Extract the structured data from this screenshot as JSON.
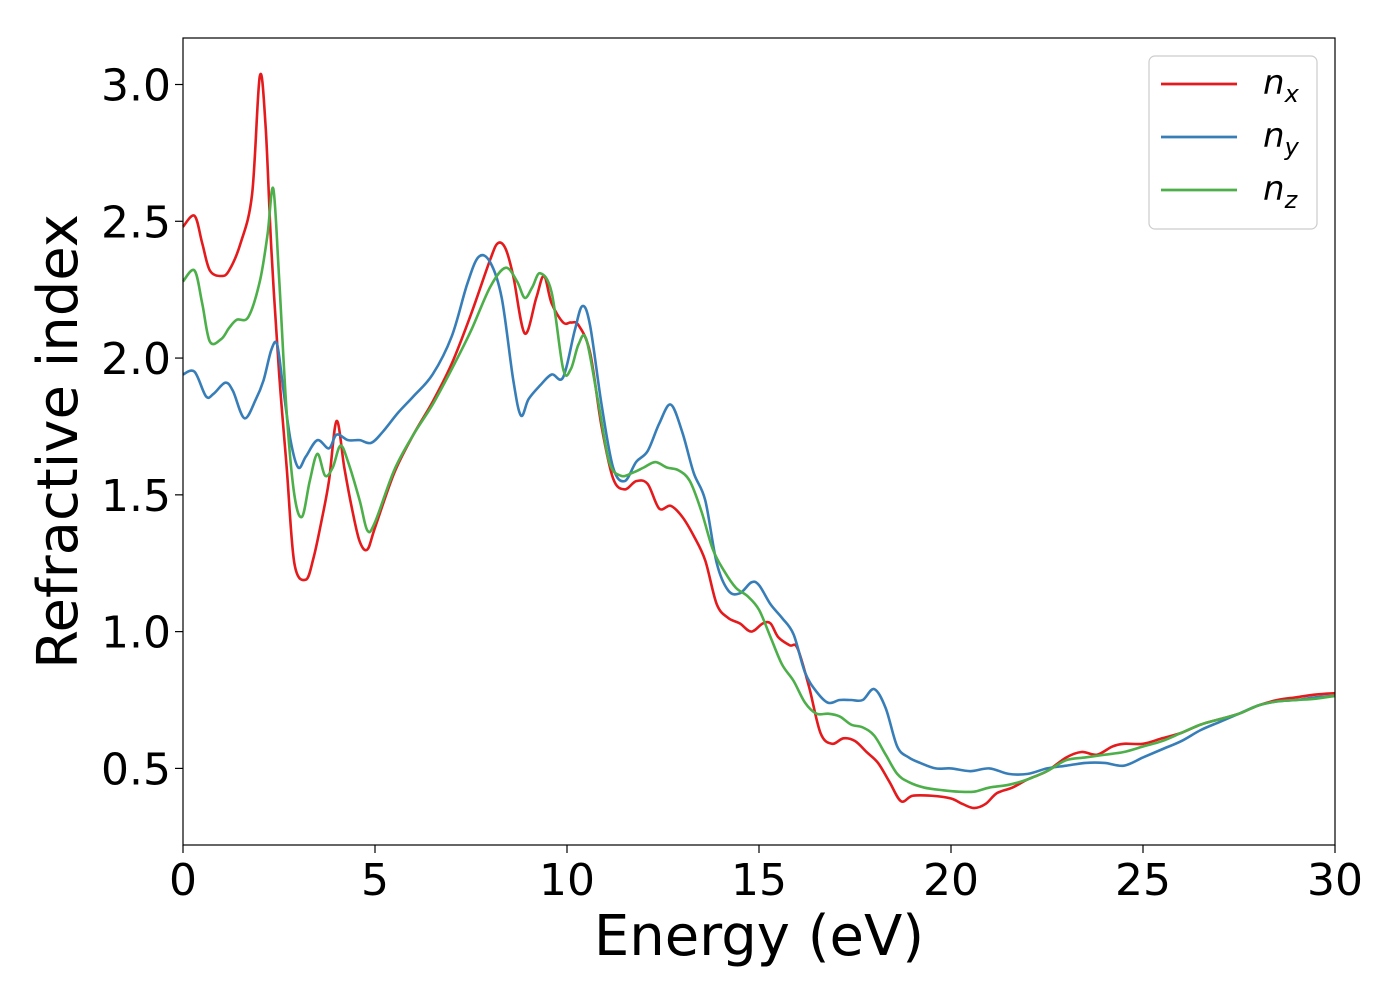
{
  "chart_data": {
    "type": "line",
    "title": "",
    "xlabel": "Energy (eV)",
    "ylabel": "Refractive index",
    "xlim": [
      0,
      30
    ],
    "ylim": [
      0.22,
      3.17
    ],
    "xticks": [
      0,
      5,
      10,
      15,
      20,
      25,
      30
    ],
    "yticks": [
      0.5,
      1.0,
      1.5,
      2.0,
      2.5,
      3.0
    ],
    "xtick_labels": [
      "0",
      "5",
      "10",
      "15",
      "20",
      "25",
      "30"
    ],
    "ytick_labels": [
      "0.5",
      "1.0",
      "1.5",
      "2.0",
      "2.5",
      "3.0"
    ],
    "grid": false,
    "legend_position": "top-right",
    "series": [
      {
        "name": "n_x",
        "legend_base": "n",
        "legend_sub": "x",
        "color": "#e41a1c",
        "points": [
          [
            0,
            2.48
          ],
          [
            0.3,
            2.52
          ],
          [
            0.5,
            2.42
          ],
          [
            0.7,
            2.32
          ],
          [
            1.0,
            2.3
          ],
          [
            1.2,
            2.32
          ],
          [
            1.5,
            2.42
          ],
          [
            1.8,
            2.6
          ],
          [
            2.0,
            3.03
          ],
          [
            2.15,
            2.85
          ],
          [
            2.3,
            2.4
          ],
          [
            2.5,
            1.95
          ],
          [
            2.7,
            1.6
          ],
          [
            2.9,
            1.25
          ],
          [
            3.2,
            1.19
          ],
          [
            3.4,
            1.27
          ],
          [
            3.6,
            1.4
          ],
          [
            3.8,
            1.55
          ],
          [
            4.0,
            1.77
          ],
          [
            4.2,
            1.6
          ],
          [
            4.4,
            1.45
          ],
          [
            4.6,
            1.33
          ],
          [
            4.8,
            1.3
          ],
          [
            5.0,
            1.38
          ],
          [
            5.5,
            1.58
          ],
          [
            6,
            1.72
          ],
          [
            6.5,
            1.84
          ],
          [
            7,
            1.98
          ],
          [
            7.5,
            2.16
          ],
          [
            8,
            2.36
          ],
          [
            8.2,
            2.42
          ],
          [
            8.4,
            2.4
          ],
          [
            8.6,
            2.3
          ],
          [
            8.9,
            2.09
          ],
          [
            9.2,
            2.22
          ],
          [
            9.4,
            2.3
          ],
          [
            9.6,
            2.2
          ],
          [
            9.9,
            2.13
          ],
          [
            10.1,
            2.13
          ],
          [
            10.3,
            2.12
          ],
          [
            10.6,
            2.02
          ],
          [
            10.9,
            1.75
          ],
          [
            11.2,
            1.56
          ],
          [
            11.5,
            1.52
          ],
          [
            11.8,
            1.55
          ],
          [
            12.1,
            1.54
          ],
          [
            12.4,
            1.45
          ],
          [
            12.7,
            1.46
          ],
          [
            13.0,
            1.42
          ],
          [
            13.3,
            1.35
          ],
          [
            13.6,
            1.26
          ],
          [
            13.9,
            1.1
          ],
          [
            14.2,
            1.05
          ],
          [
            14.5,
            1.03
          ],
          [
            14.8,
            1.0
          ],
          [
            15.1,
            1.03
          ],
          [
            15.3,
            1.03
          ],
          [
            15.5,
            0.98
          ],
          [
            15.8,
            0.95
          ],
          [
            16.0,
            0.94
          ],
          [
            16.3,
            0.8
          ],
          [
            16.6,
            0.63
          ],
          [
            16.9,
            0.59
          ],
          [
            17.2,
            0.61
          ],
          [
            17.5,
            0.6
          ],
          [
            17.8,
            0.56
          ],
          [
            18.1,
            0.52
          ],
          [
            18.4,
            0.45
          ],
          [
            18.7,
            0.38
          ],
          [
            19.0,
            0.4
          ],
          [
            19.5,
            0.4
          ],
          [
            20.0,
            0.39
          ],
          [
            20.3,
            0.37
          ],
          [
            20.6,
            0.355
          ],
          [
            20.9,
            0.37
          ],
          [
            21.2,
            0.41
          ],
          [
            21.6,
            0.43
          ],
          [
            22.0,
            0.46
          ],
          [
            22.5,
            0.49
          ],
          [
            23,
            0.54
          ],
          [
            23.4,
            0.56
          ],
          [
            23.8,
            0.55
          ],
          [
            24.2,
            0.58
          ],
          [
            24.5,
            0.59
          ],
          [
            25,
            0.59
          ],
          [
            25.5,
            0.61
          ],
          [
            26,
            0.63
          ],
          [
            26.5,
            0.66
          ],
          [
            27,
            0.68
          ],
          [
            27.5,
            0.7
          ],
          [
            28,
            0.73
          ],
          [
            28.5,
            0.75
          ],
          [
            29,
            0.76
          ],
          [
            29.5,
            0.77
          ],
          [
            30,
            0.775
          ]
        ]
      },
      {
        "name": "n_y",
        "legend_base": "n",
        "legend_sub": "y",
        "color": "#377eb8",
        "points": [
          [
            0,
            1.94
          ],
          [
            0.3,
            1.95
          ],
          [
            0.6,
            1.86
          ],
          [
            0.8,
            1.87
          ],
          [
            1.1,
            1.91
          ],
          [
            1.3,
            1.88
          ],
          [
            1.6,
            1.78
          ],
          [
            1.9,
            1.85
          ],
          [
            2.1,
            1.92
          ],
          [
            2.3,
            2.03
          ],
          [
            2.45,
            2.05
          ],
          [
            2.6,
            1.9
          ],
          [
            2.8,
            1.7
          ],
          [
            3.0,
            1.6
          ],
          [
            3.2,
            1.64
          ],
          [
            3.5,
            1.7
          ],
          [
            3.8,
            1.67
          ],
          [
            4.0,
            1.72
          ],
          [
            4.3,
            1.7
          ],
          [
            4.6,
            1.7
          ],
          [
            4.9,
            1.69
          ],
          [
            5.2,
            1.73
          ],
          [
            5.6,
            1.8
          ],
          [
            6,
            1.86
          ],
          [
            6.5,
            1.94
          ],
          [
            7,
            2.08
          ],
          [
            7.4,
            2.27
          ],
          [
            7.7,
            2.37
          ],
          [
            8.0,
            2.35
          ],
          [
            8.3,
            2.22
          ],
          [
            8.6,
            1.92
          ],
          [
            8.8,
            1.79
          ],
          [
            9.0,
            1.85
          ],
          [
            9.3,
            1.9
          ],
          [
            9.6,
            1.94
          ],
          [
            9.9,
            1.93
          ],
          [
            10.2,
            2.1
          ],
          [
            10.4,
            2.19
          ],
          [
            10.6,
            2.12
          ],
          [
            10.9,
            1.83
          ],
          [
            11.2,
            1.6
          ],
          [
            11.5,
            1.55
          ],
          [
            11.8,
            1.62
          ],
          [
            12.1,
            1.66
          ],
          [
            12.4,
            1.76
          ],
          [
            12.7,
            1.83
          ],
          [
            13.0,
            1.73
          ],
          [
            13.3,
            1.58
          ],
          [
            13.6,
            1.48
          ],
          [
            13.9,
            1.25
          ],
          [
            14.2,
            1.15
          ],
          [
            14.5,
            1.14
          ],
          [
            14.8,
            1.18
          ],
          [
            15.0,
            1.17
          ],
          [
            15.3,
            1.1
          ],
          [
            15.6,
            1.05
          ],
          [
            15.9,
            0.99
          ],
          [
            16.2,
            0.85
          ],
          [
            16.5,
            0.78
          ],
          [
            16.8,
            0.74
          ],
          [
            17.1,
            0.75
          ],
          [
            17.4,
            0.75
          ],
          [
            17.7,
            0.75
          ],
          [
            18.0,
            0.79
          ],
          [
            18.3,
            0.72
          ],
          [
            18.6,
            0.58
          ],
          [
            18.9,
            0.54
          ],
          [
            19.2,
            0.52
          ],
          [
            19.6,
            0.5
          ],
          [
            20.0,
            0.5
          ],
          [
            20.5,
            0.49
          ],
          [
            21,
            0.5
          ],
          [
            21.5,
            0.48
          ],
          [
            22,
            0.48
          ],
          [
            22.5,
            0.5
          ],
          [
            23,
            0.51
          ],
          [
            23.5,
            0.52
          ],
          [
            24,
            0.52
          ],
          [
            24.5,
            0.51
          ],
          [
            25,
            0.54
          ],
          [
            25.5,
            0.57
          ],
          [
            26,
            0.6
          ],
          [
            26.5,
            0.64
          ],
          [
            27,
            0.67
          ],
          [
            27.5,
            0.7
          ],
          [
            28,
            0.73
          ],
          [
            28.5,
            0.745
          ],
          [
            29,
            0.75
          ],
          [
            29.5,
            0.76
          ],
          [
            30,
            0.765
          ]
        ]
      },
      {
        "name": "n_z",
        "legend_base": "n",
        "legend_sub": "z",
        "color": "#4daf4a",
        "points": [
          [
            0,
            2.28
          ],
          [
            0.3,
            2.32
          ],
          [
            0.5,
            2.2
          ],
          [
            0.7,
            2.06
          ],
          [
            1.0,
            2.07
          ],
          [
            1.2,
            2.11
          ],
          [
            1.4,
            2.14
          ],
          [
            1.7,
            2.15
          ],
          [
            2.0,
            2.28
          ],
          [
            2.2,
            2.45
          ],
          [
            2.35,
            2.62
          ],
          [
            2.5,
            2.3
          ],
          [
            2.7,
            1.8
          ],
          [
            2.9,
            1.5
          ],
          [
            3.1,
            1.42
          ],
          [
            3.3,
            1.55
          ],
          [
            3.5,
            1.65
          ],
          [
            3.7,
            1.57
          ],
          [
            3.9,
            1.6
          ],
          [
            4.1,
            1.68
          ],
          [
            4.3,
            1.62
          ],
          [
            4.6,
            1.48
          ],
          [
            4.8,
            1.37
          ],
          [
            5.0,
            1.4
          ],
          [
            5.5,
            1.59
          ],
          [
            6,
            1.72
          ],
          [
            6.5,
            1.83
          ],
          [
            7,
            1.96
          ],
          [
            7.5,
            2.1
          ],
          [
            8,
            2.26
          ],
          [
            8.4,
            2.33
          ],
          [
            8.7,
            2.28
          ],
          [
            8.9,
            2.22
          ],
          [
            9.1,
            2.26
          ],
          [
            9.3,
            2.31
          ],
          [
            9.6,
            2.24
          ],
          [
            9.9,
            1.96
          ],
          [
            10.1,
            1.96
          ],
          [
            10.3,
            2.05
          ],
          [
            10.5,
            2.07
          ],
          [
            10.8,
            1.85
          ],
          [
            11.1,
            1.62
          ],
          [
            11.4,
            1.57
          ],
          [
            11.7,
            1.58
          ],
          [
            12.0,
            1.6
          ],
          [
            12.3,
            1.62
          ],
          [
            12.6,
            1.6
          ],
          [
            12.9,
            1.59
          ],
          [
            13.2,
            1.55
          ],
          [
            13.5,
            1.44
          ],
          [
            13.8,
            1.3
          ],
          [
            14.1,
            1.22
          ],
          [
            14.4,
            1.16
          ],
          [
            14.7,
            1.13
          ],
          [
            15.0,
            1.08
          ],
          [
            15.3,
            0.98
          ],
          [
            15.6,
            0.88
          ],
          [
            15.9,
            0.82
          ],
          [
            16.2,
            0.74
          ],
          [
            16.5,
            0.7
          ],
          [
            16.8,
            0.7
          ],
          [
            17.1,
            0.69
          ],
          [
            17.4,
            0.66
          ],
          [
            17.7,
            0.65
          ],
          [
            18.0,
            0.62
          ],
          [
            18.3,
            0.55
          ],
          [
            18.6,
            0.48
          ],
          [
            18.9,
            0.45
          ],
          [
            19.3,
            0.43
          ],
          [
            19.8,
            0.42
          ],
          [
            20.2,
            0.415
          ],
          [
            20.6,
            0.415
          ],
          [
            21,
            0.43
          ],
          [
            21.5,
            0.44
          ],
          [
            22,
            0.46
          ],
          [
            22.5,
            0.49
          ],
          [
            23,
            0.53
          ],
          [
            23.5,
            0.54
          ],
          [
            24,
            0.55
          ],
          [
            24.5,
            0.56
          ],
          [
            25,
            0.58
          ],
          [
            25.5,
            0.6
          ],
          [
            26,
            0.63
          ],
          [
            26.5,
            0.66
          ],
          [
            27,
            0.68
          ],
          [
            27.5,
            0.7
          ],
          [
            28,
            0.73
          ],
          [
            28.5,
            0.745
          ],
          [
            29,
            0.75
          ],
          [
            29.5,
            0.755
          ],
          [
            30,
            0.765
          ]
        ]
      }
    ]
  }
}
